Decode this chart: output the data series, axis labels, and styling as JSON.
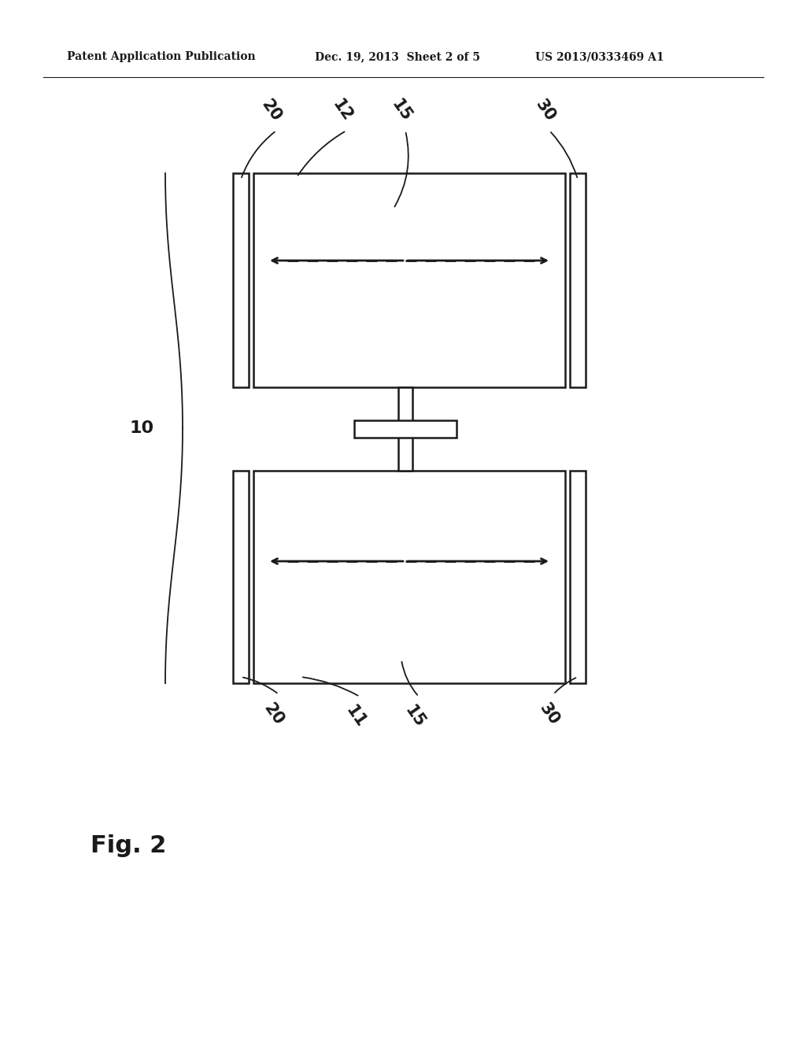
{
  "bg_color": "#ffffff",
  "line_color": "#1a1a1a",
  "header_left": "Patent Application Publication",
  "header_mid": "Dec. 19, 2013  Sheet 2 of 5",
  "header_right": "US 2013/0333469 A1",
  "fig_label": "Fig. 2",
  "labels_top": [
    "20",
    "12",
    "15",
    "30"
  ],
  "labels_bot": [
    "20",
    "11",
    "15",
    "30"
  ],
  "label_brace": "10"
}
